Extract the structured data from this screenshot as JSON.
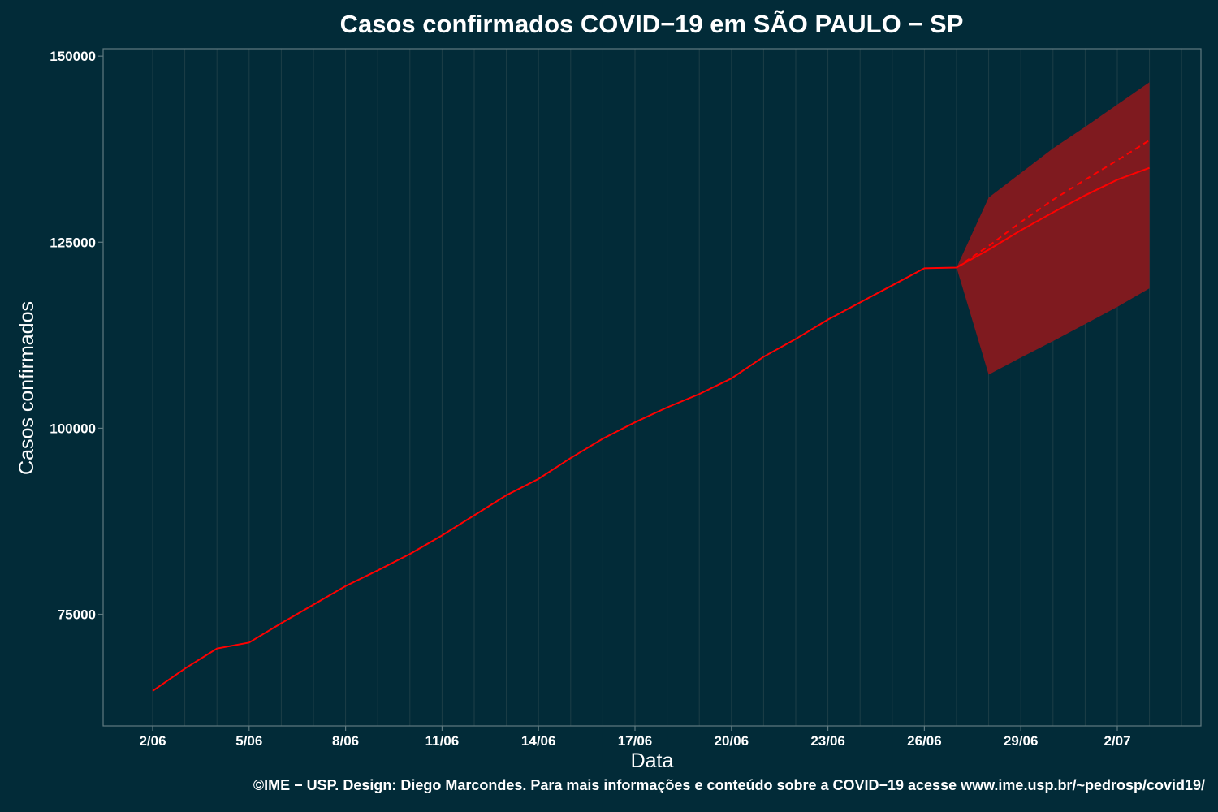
{
  "colors": {
    "background": "#022b38",
    "line": "#ff0000",
    "band": "#7f1a1f",
    "grid": "#1d3f47",
    "panel_border": "#5f7a80"
  },
  "chart_data": {
    "type": "line",
    "title": "Casos confirmados COVID−19 em SÃO PAULO − SP",
    "xlabel": "Data",
    "ylabel": "Casos confirmados",
    "x_tick_labels": [
      "2/06",
      "5/06",
      "8/06",
      "11/06",
      "14/06",
      "17/06",
      "20/06",
      "23/06",
      "26/06",
      "29/06",
      "2/07"
    ],
    "y_ticks": [
      75000,
      100000,
      125000,
      150000
    ],
    "ylim": [
      60000,
      151000
    ],
    "grid": "vertical",
    "x": [
      "2/06",
      "3/06",
      "4/06",
      "5/06",
      "6/06",
      "7/06",
      "8/06",
      "9/06",
      "10/06",
      "11/06",
      "12/06",
      "13/06",
      "14/06",
      "15/06",
      "16/06",
      "17/06",
      "18/06",
      "19/06",
      "20/06",
      "21/06",
      "22/06",
      "23/06",
      "24/06",
      "25/06",
      "26/06",
      "27/06",
      "28/06",
      "29/06",
      "30/06",
      "1/07",
      "2/07",
      "3/07"
    ],
    "series": [
      {
        "style": "solid",
        "x": [
          "2/06",
          "3/06",
          "4/06",
          "5/06",
          "6/06",
          "7/06",
          "8/06",
          "9/06",
          "10/06",
          "11/06",
          "12/06",
          "13/06",
          "14/06",
          "15/06",
          "16/06",
          "17/06",
          "18/06",
          "19/06",
          "20/06",
          "21/06",
          "22/06",
          "23/06",
          "24/06",
          "25/06",
          "26/06",
          "27/06",
          "28/06",
          "29/06",
          "30/06",
          "1/07",
          "2/07",
          "3/07"
        ],
        "values": [
          64700,
          67700,
          70400,
          71200,
          73800,
          76300,
          78800,
          80900,
          83100,
          85600,
          88300,
          91000,
          93200,
          96000,
          98600,
          100800,
          102800,
          104600,
          106700,
          109600,
          112000,
          114600,
          116900,
          119200,
          121500,
          121600,
          124000,
          126600,
          129000,
          131300,
          133400,
          135000
        ]
      },
      {
        "style": "dashed",
        "x": [
          "27/06",
          "28/06",
          "29/06",
          "30/06",
          "1/07",
          "2/07",
          "3/07"
        ],
        "values": [
          121600,
          124500,
          127700,
          130700,
          133400,
          136000,
          138700
        ]
      }
    ],
    "band": {
      "x": [
        "27/06",
        "28/06",
        "29/06",
        "30/06",
        "1/07",
        "2/07",
        "3/07"
      ],
      "upper": [
        121600,
        131000,
        134300,
        137600,
        140500,
        143500,
        146500
      ],
      "lower": [
        121600,
        107200,
        109500,
        111700,
        114000,
        116300,
        118800
      ]
    }
  },
  "caption": "©IME − USP. Design: Diego Marcondes. Para mais informações e conteúdo sobre a COVID−19 acesse www.ime.usp.br/~pedrosp/covid19/"
}
